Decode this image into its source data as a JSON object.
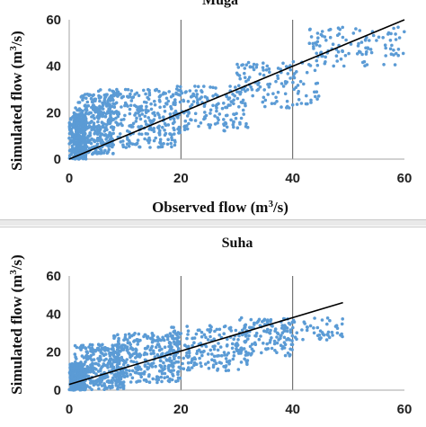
{
  "colors": {
    "points": "#5b9bd5",
    "fit_line": "#000000",
    "grid": "#595959",
    "axis": "#a6a6a6"
  },
  "chart_data": [
    {
      "type": "scatter",
      "title": "Muga",
      "xlabel": "Observed flow (m³/s)",
      "ylabel": "Simulated flow (m³/s)",
      "xlim": [
        0,
        60
      ],
      "ylim": [
        0,
        60
      ],
      "xticks": [
        "0",
        "20",
        "40",
        "60"
      ],
      "yticks": [
        "0",
        "20",
        "40",
        "60"
      ],
      "grid": "vertical",
      "fit_line": {
        "x": [
          0,
          60
        ],
        "y": [
          0,
          60
        ]
      },
      "clusters": [
        {
          "x_range": [
            0,
            3
          ],
          "y_range": [
            0,
            20
          ],
          "count": 280
        },
        {
          "x_range": [
            1,
            8
          ],
          "y_range": [
            2,
            28
          ],
          "count": 300
        },
        {
          "x_range": [
            5,
            20
          ],
          "y_range": [
            5,
            30
          ],
          "count": 320
        },
        {
          "x_range": [
            18,
            32
          ],
          "y_range": [
            12,
            32
          ],
          "count": 170
        },
        {
          "x_range": [
            30,
            45
          ],
          "y_range": [
            22,
            42
          ],
          "count": 120
        },
        {
          "x_range": [
            43,
            60
          ],
          "y_range": [
            40,
            57
          ],
          "count": 110
        }
      ]
    },
    {
      "type": "scatter",
      "title": "Suha",
      "xlabel": "",
      "ylabel": "Simulated flow (m³/s)",
      "xlim": [
        0,
        60
      ],
      "ylim": [
        0,
        60
      ],
      "xticks": [
        "0",
        "20",
        "40",
        "60"
      ],
      "yticks": [
        "0",
        "20",
        "40",
        "60"
      ],
      "grid": "vertical",
      "fit_line": {
        "x": [
          0,
          49
        ],
        "y": [
          3,
          46
        ]
      },
      "clusters": [
        {
          "x_range": [
            0,
            3
          ],
          "y_range": [
            0,
            14
          ],
          "count": 260
        },
        {
          "x_range": [
            1,
            10
          ],
          "y_range": [
            0,
            24
          ],
          "count": 320
        },
        {
          "x_range": [
            8,
            20
          ],
          "y_range": [
            4,
            30
          ],
          "count": 300
        },
        {
          "x_range": [
            18,
            32
          ],
          "y_range": [
            10,
            34
          ],
          "count": 200
        },
        {
          "x_range": [
            30,
            40
          ],
          "y_range": [
            18,
            38
          ],
          "count": 120
        },
        {
          "x_range": [
            38,
            49
          ],
          "y_range": [
            26,
            38
          ],
          "count": 60
        }
      ]
    }
  ]
}
